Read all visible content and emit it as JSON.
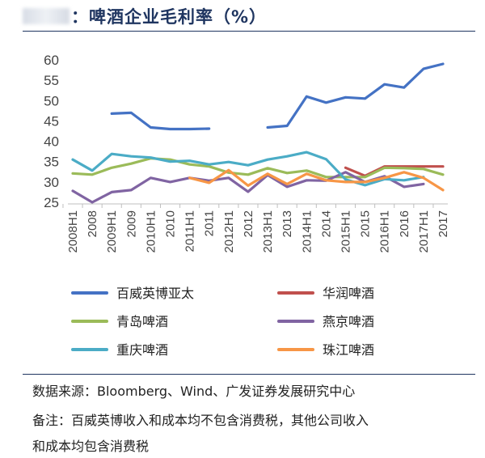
{
  "header": {
    "title": "：啤酒企业毛利率（%）"
  },
  "footer": {
    "source": "数据来源：Bloomberg、Wind、广发证券发展研究中心",
    "note_line1": "备注：百威英博收入和成本均不包含消费税，其他公司收入",
    "note_line2": "和成本均包含消费税"
  },
  "chart_data": {
    "type": "line",
    "categories": [
      "2008H1",
      "2008",
      "2009H1",
      "2009",
      "2010H1",
      "2010",
      "2011H1",
      "2011",
      "2012H1",
      "2012",
      "2013H1",
      "2013",
      "2014H1",
      "2014",
      "2015H1",
      "2015",
      "2016H1",
      "2016",
      "2017H1",
      "2017"
    ],
    "ylim": [
      25,
      60
    ],
    "yticks": [
      25,
      30,
      35,
      40,
      45,
      50,
      55,
      60
    ],
    "grid": false,
    "legend_position": "bottom",
    "series": [
      {
        "name": "百威英博亚太",
        "color": "#4472c4",
        "values": [
          null,
          null,
          46.8,
          47.0,
          43.4,
          43.0,
          43.0,
          43.1,
          null,
          null,
          43.4,
          43.8,
          51.0,
          49.5,
          50.8,
          50.5,
          54.0,
          53.2,
          57.8,
          59.0
        ]
      },
      {
        "name": "华润啤酒",
        "color": "#c0504d",
        "values": [
          null,
          null,
          null,
          null,
          null,
          null,
          null,
          null,
          null,
          null,
          null,
          null,
          null,
          null,
          33.5,
          31.5,
          33.8,
          33.8,
          33.8,
          33.8
        ]
      },
      {
        "name": "青岛啤酒",
        "color": "#9bbb59",
        "values": [
          32.1,
          31.8,
          33.5,
          34.5,
          35.8,
          35.5,
          34.3,
          33.8,
          32.3,
          31.8,
          33.4,
          32.2,
          32.8,
          31.2,
          31.2,
          31.2,
          33.5,
          33.4,
          33.2,
          31.8
        ]
      },
      {
        "name": "燕京啤酒",
        "color": "#8064a2",
        "values": [
          27.8,
          25.0,
          27.5,
          28.0,
          31.0,
          30.0,
          31.0,
          30.3,
          31.0,
          27.6,
          31.7,
          28.8,
          30.4,
          30.3,
          32.4,
          30.0,
          31.4,
          28.8,
          29.5,
          null
        ]
      },
      {
        "name": "重庆啤酒",
        "color": "#4bacc6",
        "values": [
          35.5,
          32.8,
          36.9,
          36.3,
          36.0,
          35.0,
          35.2,
          34.3,
          34.9,
          34.1,
          35.5,
          36.3,
          37.3,
          35.6,
          30.6,
          29.2,
          30.7,
          30.4,
          31.2,
          null
        ]
      },
      {
        "name": "珠江啤酒",
        "color": "#f79646",
        "values": [
          null,
          null,
          null,
          null,
          null,
          null,
          31.0,
          29.8,
          32.9,
          29.1,
          32.0,
          29.5,
          32.0,
          30.4,
          30.0,
          30.0,
          31.0,
          32.4,
          31.0,
          28.0
        ]
      }
    ]
  }
}
